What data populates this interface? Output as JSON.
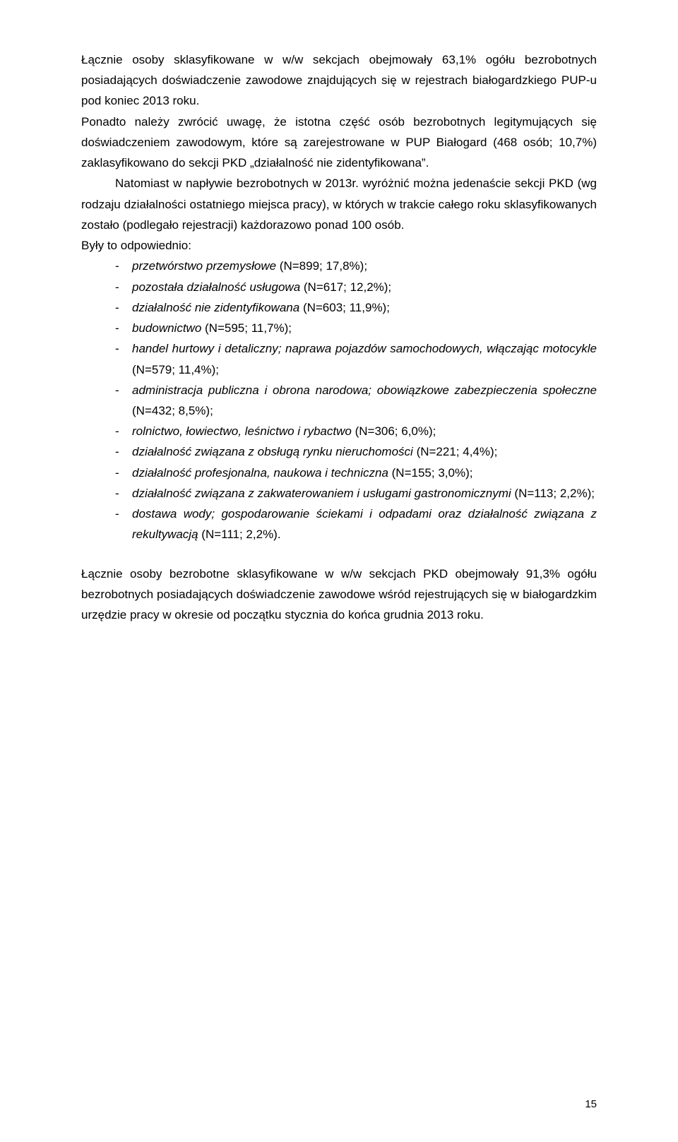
{
  "para1": "Łącznie osoby sklasyfikowane w w/w sekcjach obejmowały 63,1% ogółu bezrobotnych posiadających doświadczenie zawodowe znajdujących się w rejestrach białogardzkiego PUP-u pod koniec 2013 roku.",
  "para2": "Ponadto należy zwrócić uwagę, że istotna część osób bezrobotnych legitymujących się doświadczeniem zawodowym, które są zarejestrowane w PUP Białogard (468 osób; 10,7%) zaklasyfikowano do sekcji PKD „działalność nie zidentyfikowana”.",
  "para3": "Natomiast w napływie bezrobotnych w 2013r. wyróżnić można jedenaście sekcji PKD (wg rodzaju działalności ostatniego miejsca pracy), w których w trakcie całego roku sklasyfikowanych zostało (podlegało rejestracji) każdorazowo ponad 100 osób.",
  "list_intro": "Były to odpowiednio:",
  "items": [
    {
      "label": "przetwórstwo przemysłowe",
      "value": "(N=899; 17,8%);"
    },
    {
      "label": "pozostała działalność usługowa",
      "value": "(N=617; 12,2%);"
    },
    {
      "label": "działalność nie zidentyfikowana",
      "value": "(N=603; 11,9%);"
    },
    {
      "label": "budownictwo ",
      "value": "(N=595; 11,7%);"
    },
    {
      "label": "handel hurtowy i detaliczny; naprawa pojazdów samochodowych, włączając motocykle",
      "value": "(N=579; 11,4%);"
    },
    {
      "label": "administracja publiczna i obrona narodowa; obowiązkowe zabezpieczenia społeczne",
      "value": "(N=432; 8,5%);"
    },
    {
      "label": "rolnictwo, łowiectwo, leśnictwo i rybactwo",
      "value": "(N=306; 6,0%);"
    },
    {
      "label": "działalność związana z obsługą rynku nieruchomości",
      "value": "(N=221; 4,4%);"
    },
    {
      "label": "działalność profesjonalna, naukowa i techniczna",
      "value": "(N=155; 3,0%);"
    },
    {
      "label": "działalność związana z zakwaterowaniem i usługami gastronomicznymi",
      "value": "(N=113; 2,2%);"
    },
    {
      "label": "dostawa wody; gospodarowanie ściekami i odpadami oraz działalność związana z rekultywacją",
      "value": "(N=111; 2,2%)."
    }
  ],
  "para4": "Łącznie osoby bezrobotne sklasyfikowane w w/w sekcjach PKD obejmowały 91,3% ogółu bezrobotnych posiadających doświadczenie zawodowe wśród rejestrujących się w białogardzkim urzędzie pracy w okresie od początku stycznia do końca grudnia 2013 roku.",
  "page_number": "15"
}
